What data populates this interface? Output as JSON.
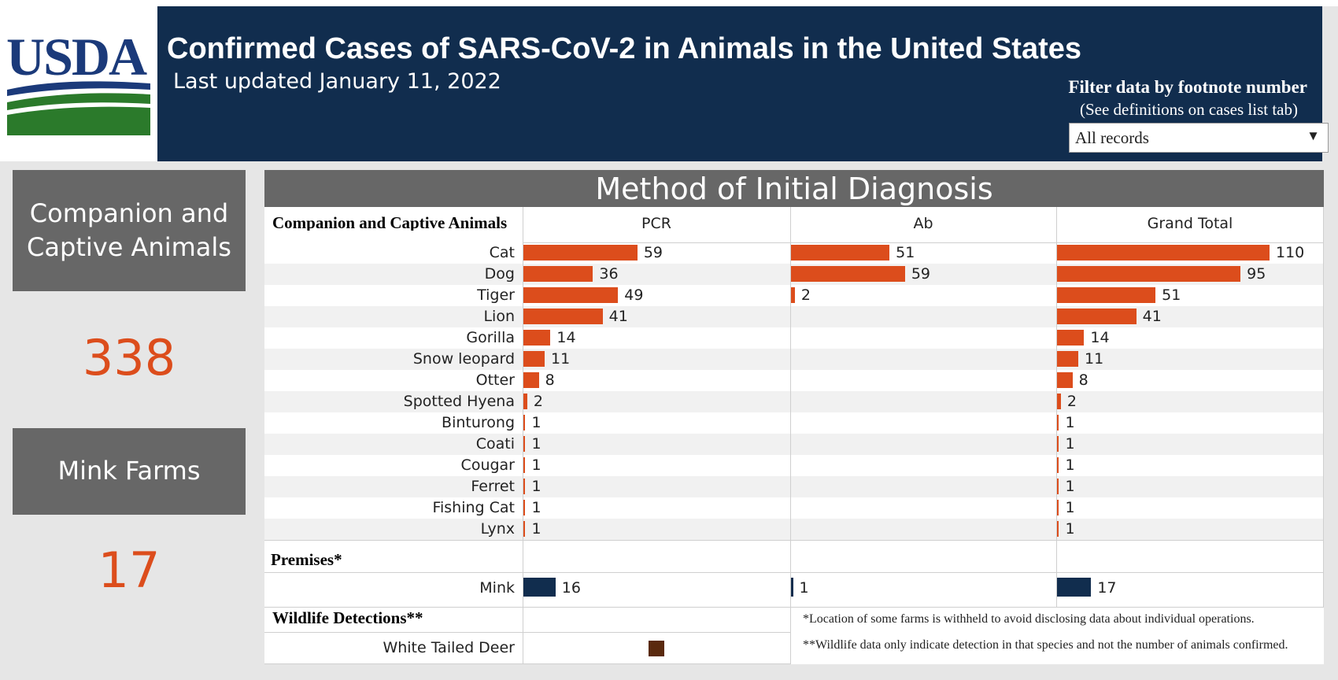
{
  "logo": {
    "text": "USDA"
  },
  "header": {
    "title": "Confirmed Cases of SARS-CoV-2 in Animals in the United States",
    "updated": "Last updated January 11, 2022"
  },
  "filter": {
    "title": "Filter data by footnote number",
    "subtitle": "(See definitions on cases list tab)",
    "value": "All records",
    "arrow_icon": "caret-down-icon"
  },
  "kpis": [
    {
      "label": "Companion and Captive Animals",
      "value": "338"
    },
    {
      "label": "Mink Farms",
      "value": "17"
    }
  ],
  "colors": {
    "header_bg": "#112d4e",
    "accent": "#dc4d1c",
    "box_gray": "#676767",
    "mink_bar": "#112d4e",
    "deer_mark": "#5a2a0e"
  },
  "panel": {
    "title": "Method of Initial Diagnosis",
    "columns": [
      "PCR",
      "Ab",
      "Grand Total"
    ],
    "section_companion": "Companion and Captive Animals",
    "section_premises": "Premises*",
    "section_wildlife": "Wildlife Detections**",
    "footnotes": [
      "*Location of some farms is withheld to avoid disclosing data about individual operations.",
      "**Wildlife data only indicate detection in that species and not the number of animals confirmed."
    ]
  },
  "chart_data": {
    "type": "bar",
    "title": "Method of Initial Diagnosis",
    "companion": {
      "categories": [
        "Cat",
        "Dog",
        "Tiger",
        "Lion",
        "Gorilla",
        "Snow leopard",
        "Otter",
        "Spotted Hyena",
        "Binturong",
        "Coati",
        "Cougar",
        "Ferret",
        "Fishing Cat",
        "Lynx"
      ],
      "series": [
        {
          "name": "PCR",
          "values": [
            59,
            36,
            49,
            41,
            14,
            11,
            8,
            2,
            1,
            1,
            1,
            1,
            1,
            1
          ]
        },
        {
          "name": "Ab",
          "values": [
            51,
            59,
            2,
            null,
            null,
            null,
            null,
            null,
            null,
            null,
            null,
            null,
            null,
            null
          ]
        },
        {
          "name": "Grand Total",
          "values": [
            110,
            95,
            51,
            41,
            14,
            11,
            8,
            2,
            1,
            1,
            1,
            1,
            1,
            1
          ]
        }
      ]
    },
    "premises": {
      "categories": [
        "Mink"
      ],
      "series": [
        {
          "name": "PCR",
          "values": [
            16
          ]
        },
        {
          "name": "Ab",
          "values": [
            1
          ]
        },
        {
          "name": "Grand Total",
          "values": [
            17
          ]
        }
      ]
    },
    "wildlife": {
      "categories": [
        "White Tailed Deer"
      ],
      "marker": "square"
    }
  }
}
